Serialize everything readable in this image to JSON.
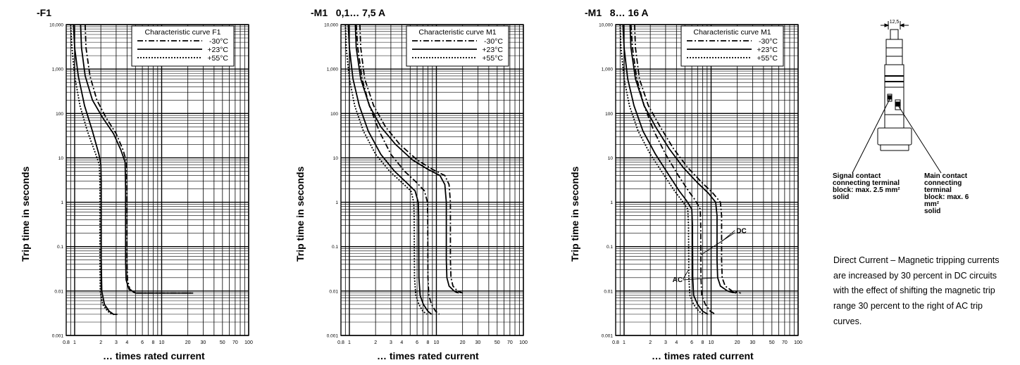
{
  "panels": [
    {
      "title": "-F1",
      "legend_title": "Characteristic curve F1",
      "ylabel": "Trip time in seconds",
      "xlabel": "… times rated current"
    },
    {
      "title": "-M1   0,1… 7,5 A",
      "legend_title": "Characteristic curve M1",
      "ylabel": "Trip time in seconds",
      "xlabel": "… times rated current"
    },
    {
      "title": "-M1   8… 16 A",
      "legend_title": "Characteristic curve M1",
      "ylabel": "Trip time in seconds",
      "xlabel": "… times rated current"
    }
  ],
  "legend_entries": [
    "-30°C",
    "+23°C",
    "+55°C"
  ],
  "x_tick_labels": [
    "0.8",
    "1",
    "2",
    "3",
    "4",
    "6",
    "8",
    "10",
    "20",
    "30",
    "50",
    "70",
    "100"
  ],
  "y_tick_labels": [
    "10,000",
    "1,000",
    "100",
    "10",
    "1",
    "0.1",
    "0.01",
    "0.001"
  ],
  "annotations": {
    "dc": "DC",
    "ac": "AC"
  },
  "device": {
    "dimension": "12,5",
    "signal_contact": [
      "Signal contact",
      "connecting terminal",
      "block:  max. 2.5 mm²",
      "solid"
    ],
    "main_contact": [
      "Main contact",
      "connecting terminal",
      "block:  max. 6 mm²",
      "solid"
    ]
  },
  "description": "Direct Current – Magnetic tripping currents are increased by 30 percent in DC circuits with the effect of shifting the magnetic trip range 30 percent to the right of AC trip curves.",
  "chart_data": [
    {
      "type": "line",
      "title": "-F1",
      "subtitle": "Characteristic curve F1",
      "xlabel": "… times rated current",
      "ylabel": "Trip time in seconds",
      "x_scale": "log",
      "y_scale": "log",
      "xlim": [
        0.8,
        100
      ],
      "ylim": [
        0.001,
        10000
      ],
      "grid": true,
      "legend": "top-right",
      "series": [
        {
          "name": "-30°C",
          "dash": "dashdot",
          "x": [
            1.32,
            1.35,
            1.5,
            1.8,
            2.3,
            3.0,
            3.6,
            3.95,
            4.0,
            4.0,
            4.05,
            4.3,
            5.0,
            10,
            23
          ],
          "y": [
            10000,
            3000,
            700,
            200,
            80,
            35,
            15,
            8,
            2,
            0.05,
            0.018,
            0.011,
            0.009,
            0.009,
            0.009
          ]
        },
        {
          "name": "+23°C",
          "dash": "solid",
          "x": [
            1.17,
            1.2,
            1.32,
            1.6,
            2.1,
            2.8,
            3.4,
            3.8,
            3.85,
            3.85,
            3.9,
            4.2,
            5.0,
            10,
            23
          ],
          "y": [
            10000,
            3000,
            700,
            200,
            80,
            35,
            15,
            8,
            2,
            0.05,
            0.018,
            0.011,
            0.009,
            0.009,
            0.009
          ]
        },
        {
          "name": "+55°C",
          "dash": "dotted",
          "x": [
            0.9,
            0.93,
            1.0,
            1.15,
            1.4,
            1.75,
            1.92,
            1.95,
            1.95,
            1.97,
            2.1,
            2.4,
            2.7,
            3.0
          ],
          "y": [
            10000,
            3000,
            700,
            150,
            40,
            12,
            7,
            3,
            0.05,
            0.01,
            0.005,
            0.0035,
            0.003,
            0.003
          ]
        },
        {
          "name": "+23°C",
          "dash": "solid",
          "x": [
            0.97,
            1.0,
            1.1,
            1.3,
            1.6,
            1.9,
            2.0,
            2.02,
            2.02,
            2.05,
            2.2,
            2.5,
            2.8,
            3.1
          ],
          "y": [
            10000,
            3000,
            700,
            150,
            40,
            12,
            7,
            3,
            0.05,
            0.01,
            0.005,
            0.0035,
            0.003,
            0.003
          ]
        }
      ]
    },
    {
      "type": "line",
      "title": "-M1   0,1… 7,5 A",
      "subtitle": "Characteristic curve M1",
      "xlabel": "… times rated current",
      "ylabel": "Trip time in seconds",
      "x_scale": "log",
      "y_scale": "log",
      "xlim": [
        0.8,
        100
      ],
      "ylim": [
        0.001,
        10000
      ],
      "grid": true,
      "legend": "top-right",
      "series": [
        {
          "name": "-30°C",
          "dash": "dashdot",
          "x": [
            1.32,
            1.35,
            1.5,
            1.9,
            2.6,
            3.8,
            6.0,
            9.0,
            12.5,
            14.0,
            14.5,
            14.5,
            14.7,
            15.5,
            17.5,
            20
          ],
          "y": [
            10000,
            3000,
            600,
            150,
            50,
            20,
            9,
            5.5,
            4,
            2.5,
            1,
            0.05,
            0.02,
            0.013,
            0.01,
            0.009
          ]
        },
        {
          "name": "+23°C",
          "dash": "solid",
          "x": [
            1.17,
            1.2,
            1.35,
            1.7,
            2.3,
            3.4,
            5.3,
            8.0,
            11.0,
            12.5,
            13.0,
            13.0,
            13.2,
            14.0,
            16.0,
            18
          ],
          "y": [
            10000,
            3000,
            600,
            150,
            50,
            20,
            9,
            5.5,
            4,
            2.5,
            1,
            0.05,
            0.02,
            0.013,
            0.01,
            0.009
          ]
        },
        {
          "name": "+55°C",
          "dash": "dotted",
          "x": [
            0.9,
            0.92,
            1.0,
            1.15,
            1.45,
            2.0,
            2.9,
            4.0,
            5.1,
            5.5,
            5.55,
            5.6,
            5.8,
            6.3,
            7.0,
            7.8
          ],
          "y": [
            10000,
            3000,
            600,
            150,
            40,
            12,
            5,
            2.8,
            1.8,
            1,
            0.5,
            0.02,
            0.008,
            0.005,
            0.0035,
            0.003
          ]
        },
        {
          "name": "+23°C",
          "dash": "solid",
          "x": [
            0.97,
            1.0,
            1.1,
            1.3,
            1.65,
            2.3,
            3.3,
            4.5,
            5.7,
            6.2,
            6.25,
            6.3,
            6.5,
            7.1,
            8.0,
            8.8
          ],
          "y": [
            10000,
            3000,
            600,
            150,
            40,
            12,
            5,
            2.8,
            1.8,
            1,
            0.5,
            0.02,
            0.008,
            0.005,
            0.0035,
            0.003
          ]
        },
        {
          "name": "-30°C",
          "dash": "dashdot",
          "x": [
            1.2,
            1.25,
            1.4,
            1.7,
            2.2,
            3.0,
            4.3,
            5.9,
            7.3,
            7.9,
            7.95,
            8.0,
            8.2,
            8.8,
            9.8,
            10.8
          ],
          "y": [
            10000,
            3000,
            600,
            150,
            40,
            12,
            5,
            2.8,
            1.8,
            1,
            0.5,
            0.02,
            0.008,
            0.005,
            0.0035,
            0.003
          ]
        }
      ]
    },
    {
      "type": "line",
      "title": "-M1   8… 16 A",
      "subtitle": "Characteristic curve M1",
      "xlabel": "… times rated current",
      "ylabel": "Trip time in seconds",
      "x_scale": "log",
      "y_scale": "log",
      "xlim": [
        0.8,
        100
      ],
      "ylim": [
        0.001,
        10000
      ],
      "grid": true,
      "legend": "top-right",
      "annotations": [
        "DC",
        "AC"
      ],
      "series": [
        {
          "name": "-30°C",
          "dash": "dashdot",
          "x": [
            1.32,
            1.35,
            1.5,
            1.9,
            2.6,
            3.7,
            5.4,
            7.8,
            10.5,
            12.8,
            13.2,
            13.2,
            13.4,
            14.5,
            17.5,
            22
          ],
          "y": [
            10000,
            3000,
            600,
            150,
            50,
            16,
            6,
            2.8,
            1.6,
            1,
            0.5,
            0.05,
            0.02,
            0.013,
            0.01,
            0.009
          ]
        },
        {
          "name": "+23°C",
          "dash": "solid",
          "x": [
            1.17,
            1.2,
            1.35,
            1.7,
            2.3,
            3.3,
            4.8,
            6.9,
            9.3,
            11.3,
            11.7,
            11.7,
            11.9,
            12.8,
            15.5,
            19.5
          ],
          "y": [
            10000,
            3000,
            600,
            150,
            50,
            16,
            6,
            2.8,
            1.6,
            1,
            0.5,
            0.05,
            0.02,
            0.013,
            0.01,
            0.009
          ]
        },
        {
          "name": "+55°C",
          "dash": "dotted",
          "x": [
            0.9,
            0.92,
            1.0,
            1.15,
            1.45,
            2.0,
            2.9,
            3.8,
            4.6,
            5.4,
            5.5,
            5.55,
            5.7,
            6.3,
            7.2,
            8.2
          ],
          "y": [
            10000,
            3000,
            600,
            150,
            40,
            12,
            4,
            1.8,
            1.1,
            0.7,
            0.3,
            0.02,
            0.008,
            0.005,
            0.0035,
            0.003
          ]
        },
        {
          "name": "+23°C",
          "dash": "solid",
          "x": [
            0.97,
            1.0,
            1.1,
            1.3,
            1.65,
            2.3,
            3.3,
            4.3,
            5.2,
            6.0,
            6.1,
            6.15,
            6.3,
            7.0,
            8.0,
            9.2
          ],
          "y": [
            10000,
            3000,
            600,
            150,
            40,
            12,
            4,
            1.8,
            1.1,
            0.7,
            0.3,
            0.02,
            0.008,
            0.005,
            0.0035,
            0.003
          ]
        },
        {
          "name": "-30°C",
          "dash": "dashdot",
          "x": [
            1.2,
            1.25,
            1.4,
            1.7,
            2.2,
            3.0,
            4.2,
            5.5,
            6.6,
            7.5,
            7.6,
            7.65,
            7.8,
            8.6,
            9.8,
            11.2
          ],
          "y": [
            10000,
            3000,
            600,
            150,
            40,
            12,
            4,
            1.8,
            1.1,
            0.7,
            0.3,
            0.02,
            0.008,
            0.005,
            0.0035,
            0.003
          ]
        }
      ]
    }
  ]
}
